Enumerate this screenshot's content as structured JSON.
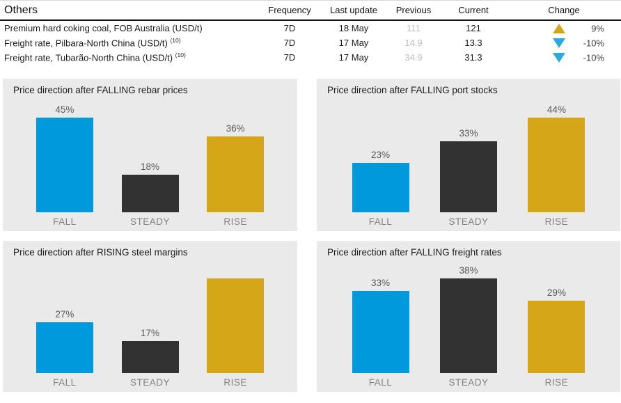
{
  "table": {
    "title": "Others",
    "columns": {
      "frequency": "Frequency",
      "last_update": "Last update",
      "previous": "Previous",
      "current": "Current",
      "change": "Change"
    },
    "rows": [
      {
        "name": "Premium hard coking coal, FOB Australia (USD/t)",
        "sup": "",
        "frequency": "7D",
        "last_update": "18 May",
        "previous": "111",
        "current": "121",
        "direction": "up",
        "change": "9%"
      },
      {
        "name": "Freight rate, Pilbara-North China (USD/t)",
        "sup": "(10)",
        "frequency": "7D",
        "last_update": "17 May",
        "previous": "14.9",
        "current": "13.3",
        "direction": "down",
        "change": "-10%"
      },
      {
        "name": "Freight rate, Tubarão-North China (USD/t)",
        "sup": "(10)",
        "frequency": "7D",
        "last_update": "17 May",
        "previous": "34.9",
        "current": "31.3",
        "direction": "down",
        "change": "-10%"
      }
    ]
  },
  "palette": {
    "fall": "#0099db",
    "steady": "#323232",
    "rise": "#d5a617",
    "up_triangle": "#d5a617",
    "down_triangle": "#29abe2",
    "panel_bg": "#eaeaea"
  },
  "chart_data": [
    {
      "type": "bar",
      "title": "Price direction after FALLING rebar prices",
      "categories": [
        "FALL",
        "STEADY",
        "RISE"
      ],
      "values": [
        45,
        18,
        36
      ],
      "labels": [
        "45%",
        "18%",
        "36%"
      ],
      "ylabel": "",
      "xlabel": "",
      "grid": false,
      "legend": false
    },
    {
      "type": "bar",
      "title": "Price direction after FALLING port stocks",
      "categories": [
        "FALL",
        "STEADY",
        "RISE"
      ],
      "values": [
        23,
        33,
        44
      ],
      "labels": [
        "23%",
        "33%",
        "44%"
      ],
      "ylabel": "",
      "xlabel": "",
      "grid": false,
      "legend": false
    },
    {
      "type": "bar",
      "title": "Price direction after RISING steel margins",
      "categories": [
        "FALL",
        "STEADY",
        "RISE"
      ],
      "values": [
        27,
        17,
        50
      ],
      "labels": [
        "27%",
        "17%",
        ""
      ],
      "ylabel": "",
      "xlabel": "",
      "grid": false,
      "legend": false
    },
    {
      "type": "bar",
      "title": "Price direction after FALLING freight rates",
      "categories": [
        "FALL",
        "STEADY",
        "RISE"
      ],
      "values": [
        33,
        38,
        29
      ],
      "labels": [
        "33%",
        "38%",
        "29%"
      ],
      "ylabel": "",
      "xlabel": "",
      "grid": false,
      "legend": false
    }
  ]
}
